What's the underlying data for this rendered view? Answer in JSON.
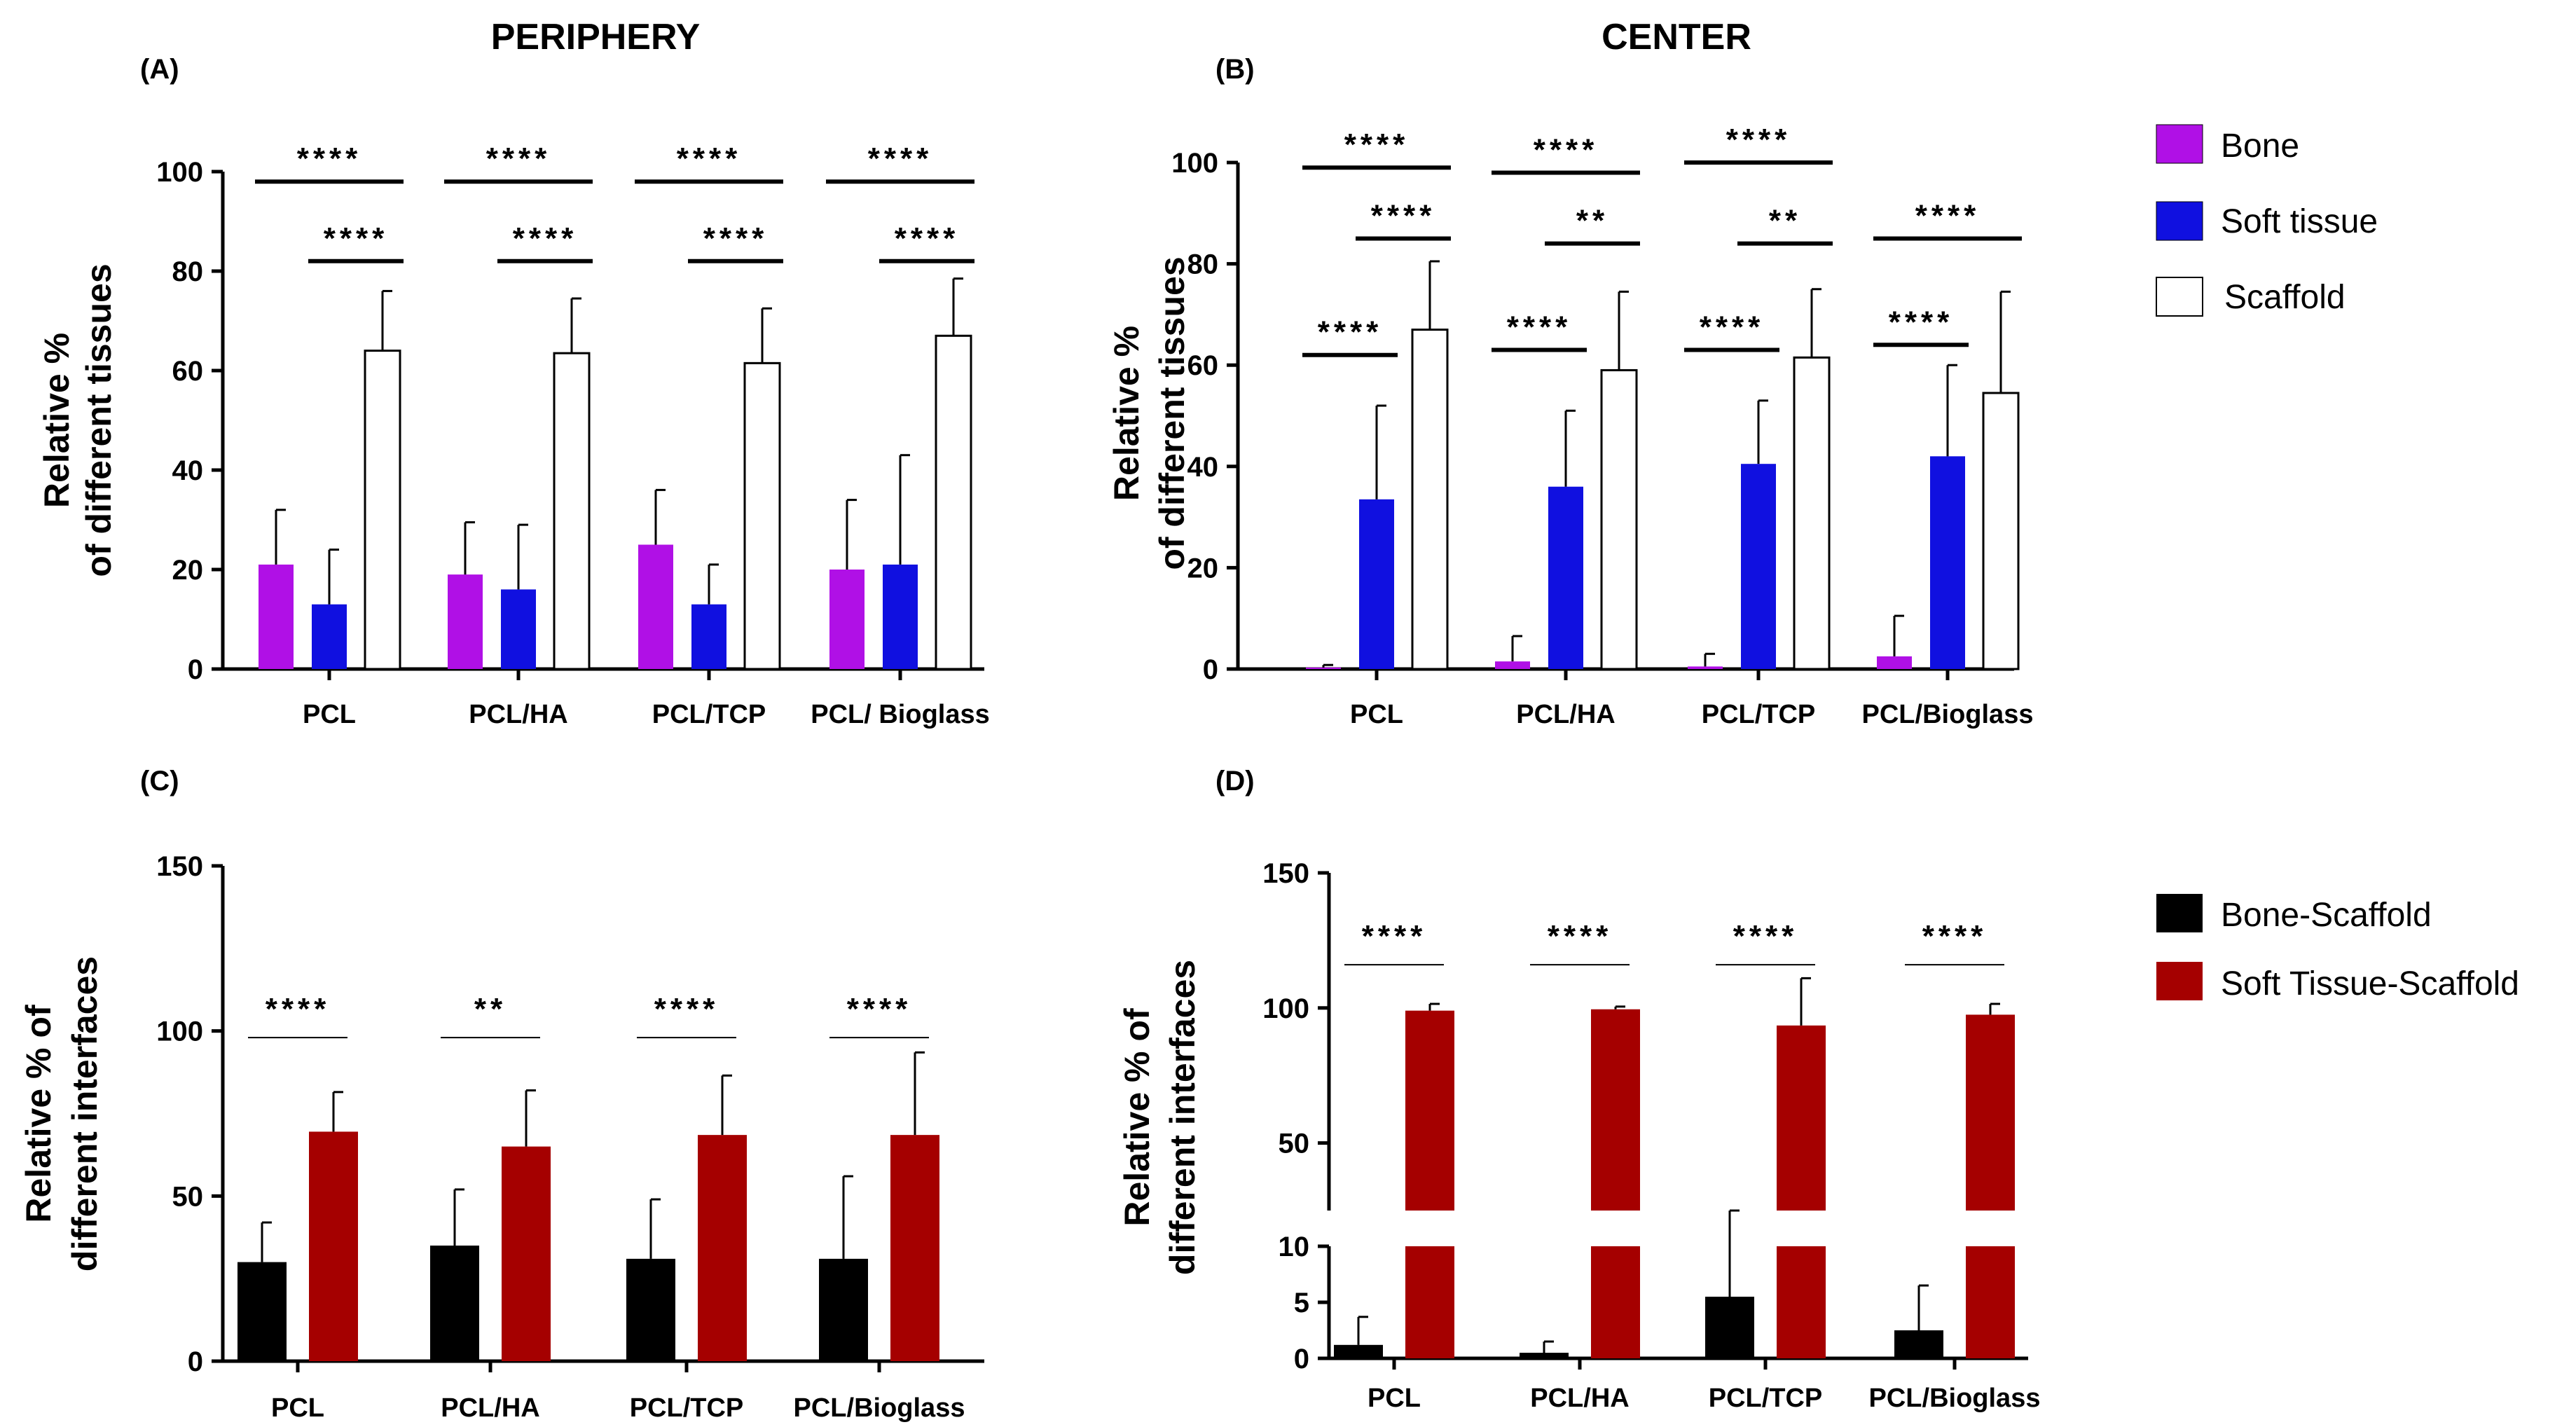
{
  "titles": {
    "periphery": "PERIPHERY",
    "center": "CENTER"
  },
  "legend_tissues": [
    {
      "label": "Bone",
      "color": "#b010e6"
    },
    {
      "label": "Soft tissue",
      "color": "#1010e0"
    },
    {
      "label": "Scaffold",
      "color": "#ffffff"
    }
  ],
  "legend_interfaces": [
    {
      "label": "Bone-Scaffold",
      "color": "#000000"
    },
    {
      "label": "Soft Tissue-Scaffold",
      "color": "#a50000"
    }
  ],
  "chart_data": [
    {
      "id": "A",
      "label": "(A)",
      "type": "bar",
      "title": "PERIPHERY",
      "ylabel_lines": [
        "Relative %",
        "of different tissues"
      ],
      "ylim": [
        0,
        100
      ],
      "yticks": [
        0,
        20,
        40,
        60,
        80,
        100
      ],
      "categories": [
        "PCL",
        "PCL/HA",
        "PCL/TCP",
        "PCL/ Bioglass"
      ],
      "series": [
        {
          "name": "Bone",
          "color": "#b010e6",
          "values": [
            21,
            19,
            25,
            20
          ],
          "errors": [
            11,
            10.5,
            11,
            14
          ]
        },
        {
          "name": "Soft tissue",
          "color": "#1010e0",
          "values": [
            13,
            16,
            13,
            21
          ],
          "errors": [
            11,
            13,
            8,
            22
          ]
        },
        {
          "name": "Scaffold",
          "color": "#ffffff",
          "values": [
            64,
            63.5,
            61.5,
            67
          ],
          "errors": [
            12,
            11,
            11,
            11.5
          ]
        }
      ],
      "significance": [
        {
          "cat": 0,
          "from": 0,
          "to": 2,
          "y": 98,
          "label": "****",
          "thick": true
        },
        {
          "cat": 0,
          "from": 1,
          "to": 2,
          "y": 82,
          "label": "****",
          "thick": true
        },
        {
          "cat": 1,
          "from": 0,
          "to": 2,
          "y": 98,
          "label": "****",
          "thick": true
        },
        {
          "cat": 1,
          "from": 1,
          "to": 2,
          "y": 82,
          "label": "****",
          "thick": true
        },
        {
          "cat": 2,
          "from": 0,
          "to": 2,
          "y": 98,
          "label": "****",
          "thick": true
        },
        {
          "cat": 2,
          "from": 1,
          "to": 2,
          "y": 82,
          "label": "****",
          "thick": true
        },
        {
          "cat": 3,
          "from": 0,
          "to": 2,
          "y": 98,
          "label": "****",
          "thick": true
        },
        {
          "cat": 3,
          "from": 1,
          "to": 2,
          "y": 82,
          "label": "****",
          "thick": true
        }
      ]
    },
    {
      "id": "B",
      "label": "(B)",
      "type": "bar",
      "title": "CENTER",
      "ylabel_lines": [
        "Relative %",
        "of different tissues"
      ],
      "ylim": [
        0,
        100
      ],
      "yticks": [
        0,
        20,
        40,
        60,
        80,
        100
      ],
      "categories": [
        "PCL",
        "PCL/HA",
        "PCL/TCP",
        "PCL/Bioglass"
      ],
      "series": [
        {
          "name": "Bone",
          "color": "#b010e6",
          "values": [
            0.3,
            1.5,
            0.5,
            2.5
          ],
          "errors": [
            0.5,
            5,
            2.5,
            8
          ]
        },
        {
          "name": "Soft tissue",
          "color": "#1010e0",
          "values": [
            33.5,
            36,
            40.5,
            42
          ],
          "errors": [
            18.5,
            15,
            12.5,
            18
          ]
        },
        {
          "name": "Scaffold",
          "color": "#ffffff",
          "values": [
            67,
            59,
            61.5,
            54.5
          ],
          "errors": [
            13.5,
            15.5,
            13.5,
            20
          ]
        }
      ],
      "significance": [
        {
          "cat": 0,
          "from": 0,
          "to": 2,
          "y": 99,
          "label": "****",
          "thick": true
        },
        {
          "cat": 0,
          "from": 1,
          "to": 2,
          "y": 85,
          "label": "****",
          "thick": true
        },
        {
          "cat": 0,
          "from": 0,
          "to": 1,
          "y": 62,
          "label": "****",
          "thick": true
        },
        {
          "cat": 1,
          "from": 0,
          "to": 2,
          "y": 98,
          "label": "****",
          "thick": true
        },
        {
          "cat": 1,
          "from": 1,
          "to": 2,
          "y": 84,
          "label": "**",
          "thick": true
        },
        {
          "cat": 1,
          "from": 0,
          "to": 1,
          "y": 63,
          "label": "****",
          "thick": true
        },
        {
          "cat": 2,
          "from": 0,
          "to": 2,
          "y": 100,
          "label": "****",
          "thick": true
        },
        {
          "cat": 2,
          "from": 1,
          "to": 2,
          "y": 84,
          "label": "**",
          "thick": true
        },
        {
          "cat": 2,
          "from": 0,
          "to": 1,
          "y": 63,
          "label": "****",
          "thick": true
        },
        {
          "cat": 3,
          "from": 0,
          "to": 2,
          "y": 85,
          "label": "****",
          "thick": true
        },
        {
          "cat": 3,
          "from": 0,
          "to": 1,
          "y": 64,
          "label": "****",
          "thick": true
        }
      ]
    },
    {
      "id": "C",
      "label": "(C)",
      "type": "bar",
      "ylabel_lines": [
        "Relative % of",
        "different interfaces"
      ],
      "ylim": [
        0,
        150
      ],
      "yticks": [
        0,
        50,
        100,
        150
      ],
      "categories": [
        "PCL",
        "PCL/HA",
        "PCL/TCP",
        "PCL/Bioglass"
      ],
      "series": [
        {
          "name": "Bone-Scaffold",
          "color": "#000000",
          "values": [
            30,
            35,
            31,
            31
          ],
          "errors": [
            12,
            17,
            18,
            25
          ]
        },
        {
          "name": "Soft Tissue-Scaffold",
          "color": "#a50000",
          "values": [
            69.5,
            65,
            68.5,
            68.5
          ],
          "errors": [
            12,
            17,
            18,
            25
          ]
        }
      ],
      "significance": [
        {
          "cat": 0,
          "from": 0,
          "to": 1,
          "y": 98,
          "label": "****",
          "thick": false
        },
        {
          "cat": 1,
          "from": 0,
          "to": 1,
          "y": 98,
          "label": "**",
          "thick": false
        },
        {
          "cat": 2,
          "from": 0,
          "to": 1,
          "y": 98,
          "label": "****",
          "thick": false
        },
        {
          "cat": 3,
          "from": 0,
          "to": 1,
          "y": 98,
          "label": "****",
          "thick": false
        }
      ]
    },
    {
      "id": "D",
      "label": "(D)",
      "type": "bar",
      "ylabel_lines": [
        "Relative % of",
        "different interfaces"
      ],
      "ylim": [
        0,
        150
      ],
      "axis_break": [
        10,
        25
      ],
      "yticks": [
        0,
        5,
        10,
        50,
        100,
        150
      ],
      "categories": [
        "PCL",
        "PCL/HA",
        "PCL/TCP",
        "PCL/Bioglass"
      ],
      "series": [
        {
          "name": "Bone-Scaffold",
          "color": "#000000",
          "values": [
            1.2,
            0.5,
            5.5,
            2.5
          ],
          "errors": [
            2.5,
            1,
            13,
            4
          ]
        },
        {
          "name": "Soft Tissue-Scaffold",
          "color": "#a50000",
          "values": [
            99,
            99.5,
            93.5,
            97.5
          ],
          "errors": [
            2.5,
            1,
            17.5,
            4
          ]
        }
      ],
      "significance": [
        {
          "cat": 0,
          "from": 0,
          "to": 1,
          "y": 116,
          "label": "****",
          "thick": false
        },
        {
          "cat": 1,
          "from": 0,
          "to": 1,
          "y": 116,
          "label": "****",
          "thick": false
        },
        {
          "cat": 2,
          "from": 0,
          "to": 1,
          "y": 116,
          "label": "****",
          "thick": false
        },
        {
          "cat": 3,
          "from": 0,
          "to": 1,
          "y": 116,
          "label": "****",
          "thick": false
        }
      ]
    }
  ]
}
